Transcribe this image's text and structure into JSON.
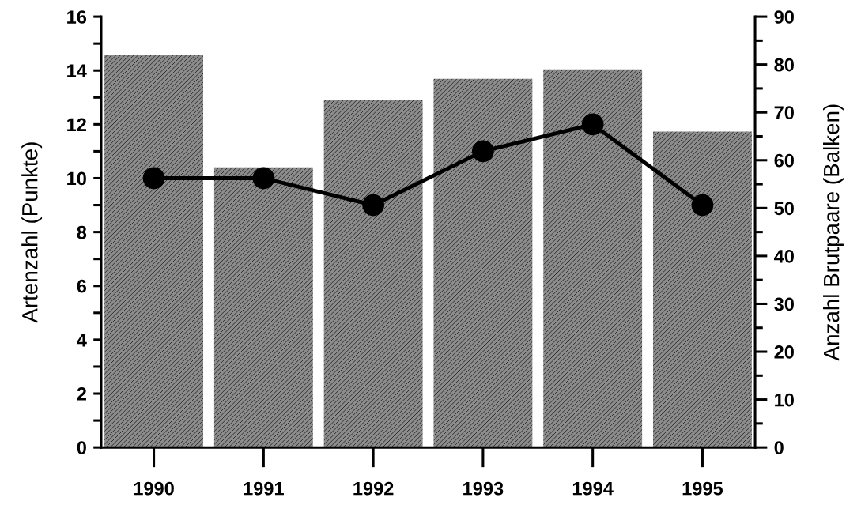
{
  "chart_data": {
    "type": "bar",
    "categories": [
      "1990",
      "1991",
      "1992",
      "1993",
      "1994",
      "1995"
    ],
    "ylabel": "Artenzahl (Punkte)",
    "y2label": "Anzahl Brutpaare (Balken)",
    "series": [
      {
        "axis": "y2",
        "color": "#8c8c8c",
        "values": [
          82,
          58.5,
          72.5,
          77,
          79,
          66
        ]
      },
      {
        "type": "line",
        "axis": "y",
        "color": "#000000",
        "marker": "circle",
        "values": [
          10,
          10,
          9,
          11,
          12,
          9
        ]
      }
    ],
    "ylim": [
      0,
      16
    ],
    "yticks": [
      0,
      {
        "value": 1,
        "label": null
      },
      2,
      {
        "value": 3,
        "label": null
      },
      4,
      {
        "value": 5,
        "label": null
      },
      6,
      {
        "value": 7,
        "label": null
      },
      8,
      {
        "value": 9,
        "label": null
      },
      10,
      {
        "value": 11,
        "label": null
      },
      12,
      {
        "value": 13,
        "label": null
      },
      14,
      {
        "value": 15,
        "label": null
      },
      16
    ],
    "y2lim": [
      0,
      90
    ],
    "y2ticks": [
      0,
      {
        "value": 5,
        "label": null
      },
      10,
      {
        "value": 15,
        "label": null
      },
      20,
      {
        "value": 25,
        "label": null
      },
      30,
      {
        "value": 35,
        "label": null
      },
      40,
      {
        "value": 45,
        "label": null
      },
      50,
      {
        "value": 55,
        "label": null
      },
      60,
      {
        "value": 65,
        "label": null
      },
      70,
      {
        "value": 75,
        "label": null
      },
      80,
      {
        "value": 85,
        "label": null
      },
      90
    ]
  }
}
